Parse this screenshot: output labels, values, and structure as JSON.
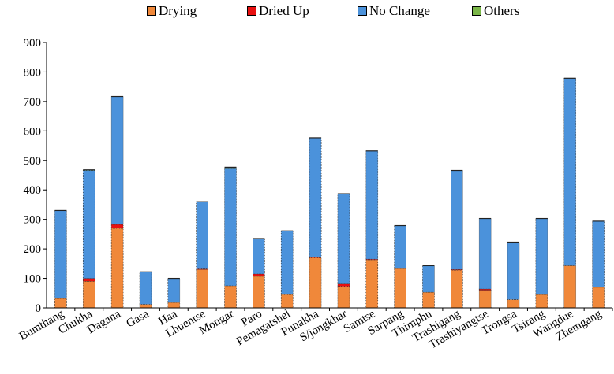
{
  "chart_data": {
    "type": "bar",
    "stacked": true,
    "categories": [
      "Bumthang",
      "Chukha",
      "Dagana",
      "Gasa",
      "Haa",
      "Lhuentse",
      "Mongar",
      "Paro",
      "Pemagatshel",
      "Punakha",
      "S/jongkhar",
      "Samtse",
      "Sarpang",
      "Thimphu",
      "Trashigang",
      "Trashiyangtse",
      "Trongsa",
      "Tsirang",
      "Wangdue",
      "Zhemgang"
    ],
    "series": [
      {
        "name": "Drying",
        "color": "#f0883a",
        "values": [
          32,
          90,
          270,
          12,
          18,
          130,
          75,
          107,
          45,
          170,
          73,
          163,
          133,
          53,
          128,
          60,
          28,
          45,
          143,
          70
        ]
      },
      {
        "name": "Dried Up",
        "color": "#e81010",
        "values": [
          0,
          10,
          13,
          0,
          0,
          2,
          0,
          8,
          0,
          2,
          8,
          2,
          0,
          0,
          2,
          4,
          0,
          0,
          0,
          0
        ]
      },
      {
        "name": "No Change",
        "color": "#4b92db",
        "values": [
          298,
          367,
          434,
          110,
          82,
          228,
          397,
          120,
          216,
          405,
          306,
          367,
          146,
          90,
          336,
          239,
          195,
          258,
          636,
          224
        ]
      },
      {
        "name": "Others",
        "color": "#7ab648",
        "values": [
          0,
          1,
          0,
          0,
          0,
          0,
          5,
          0,
          0,
          0,
          0,
          0,
          0,
          0,
          0,
          0,
          0,
          0,
          0,
          0
        ]
      }
    ],
    "ylim": [
      0,
      900
    ],
    "yticks": [
      "0",
      "100",
      "200",
      "300",
      "400",
      "500",
      "600",
      "700",
      "800",
      "900"
    ],
    "legend_position": "top",
    "grid": false
  }
}
